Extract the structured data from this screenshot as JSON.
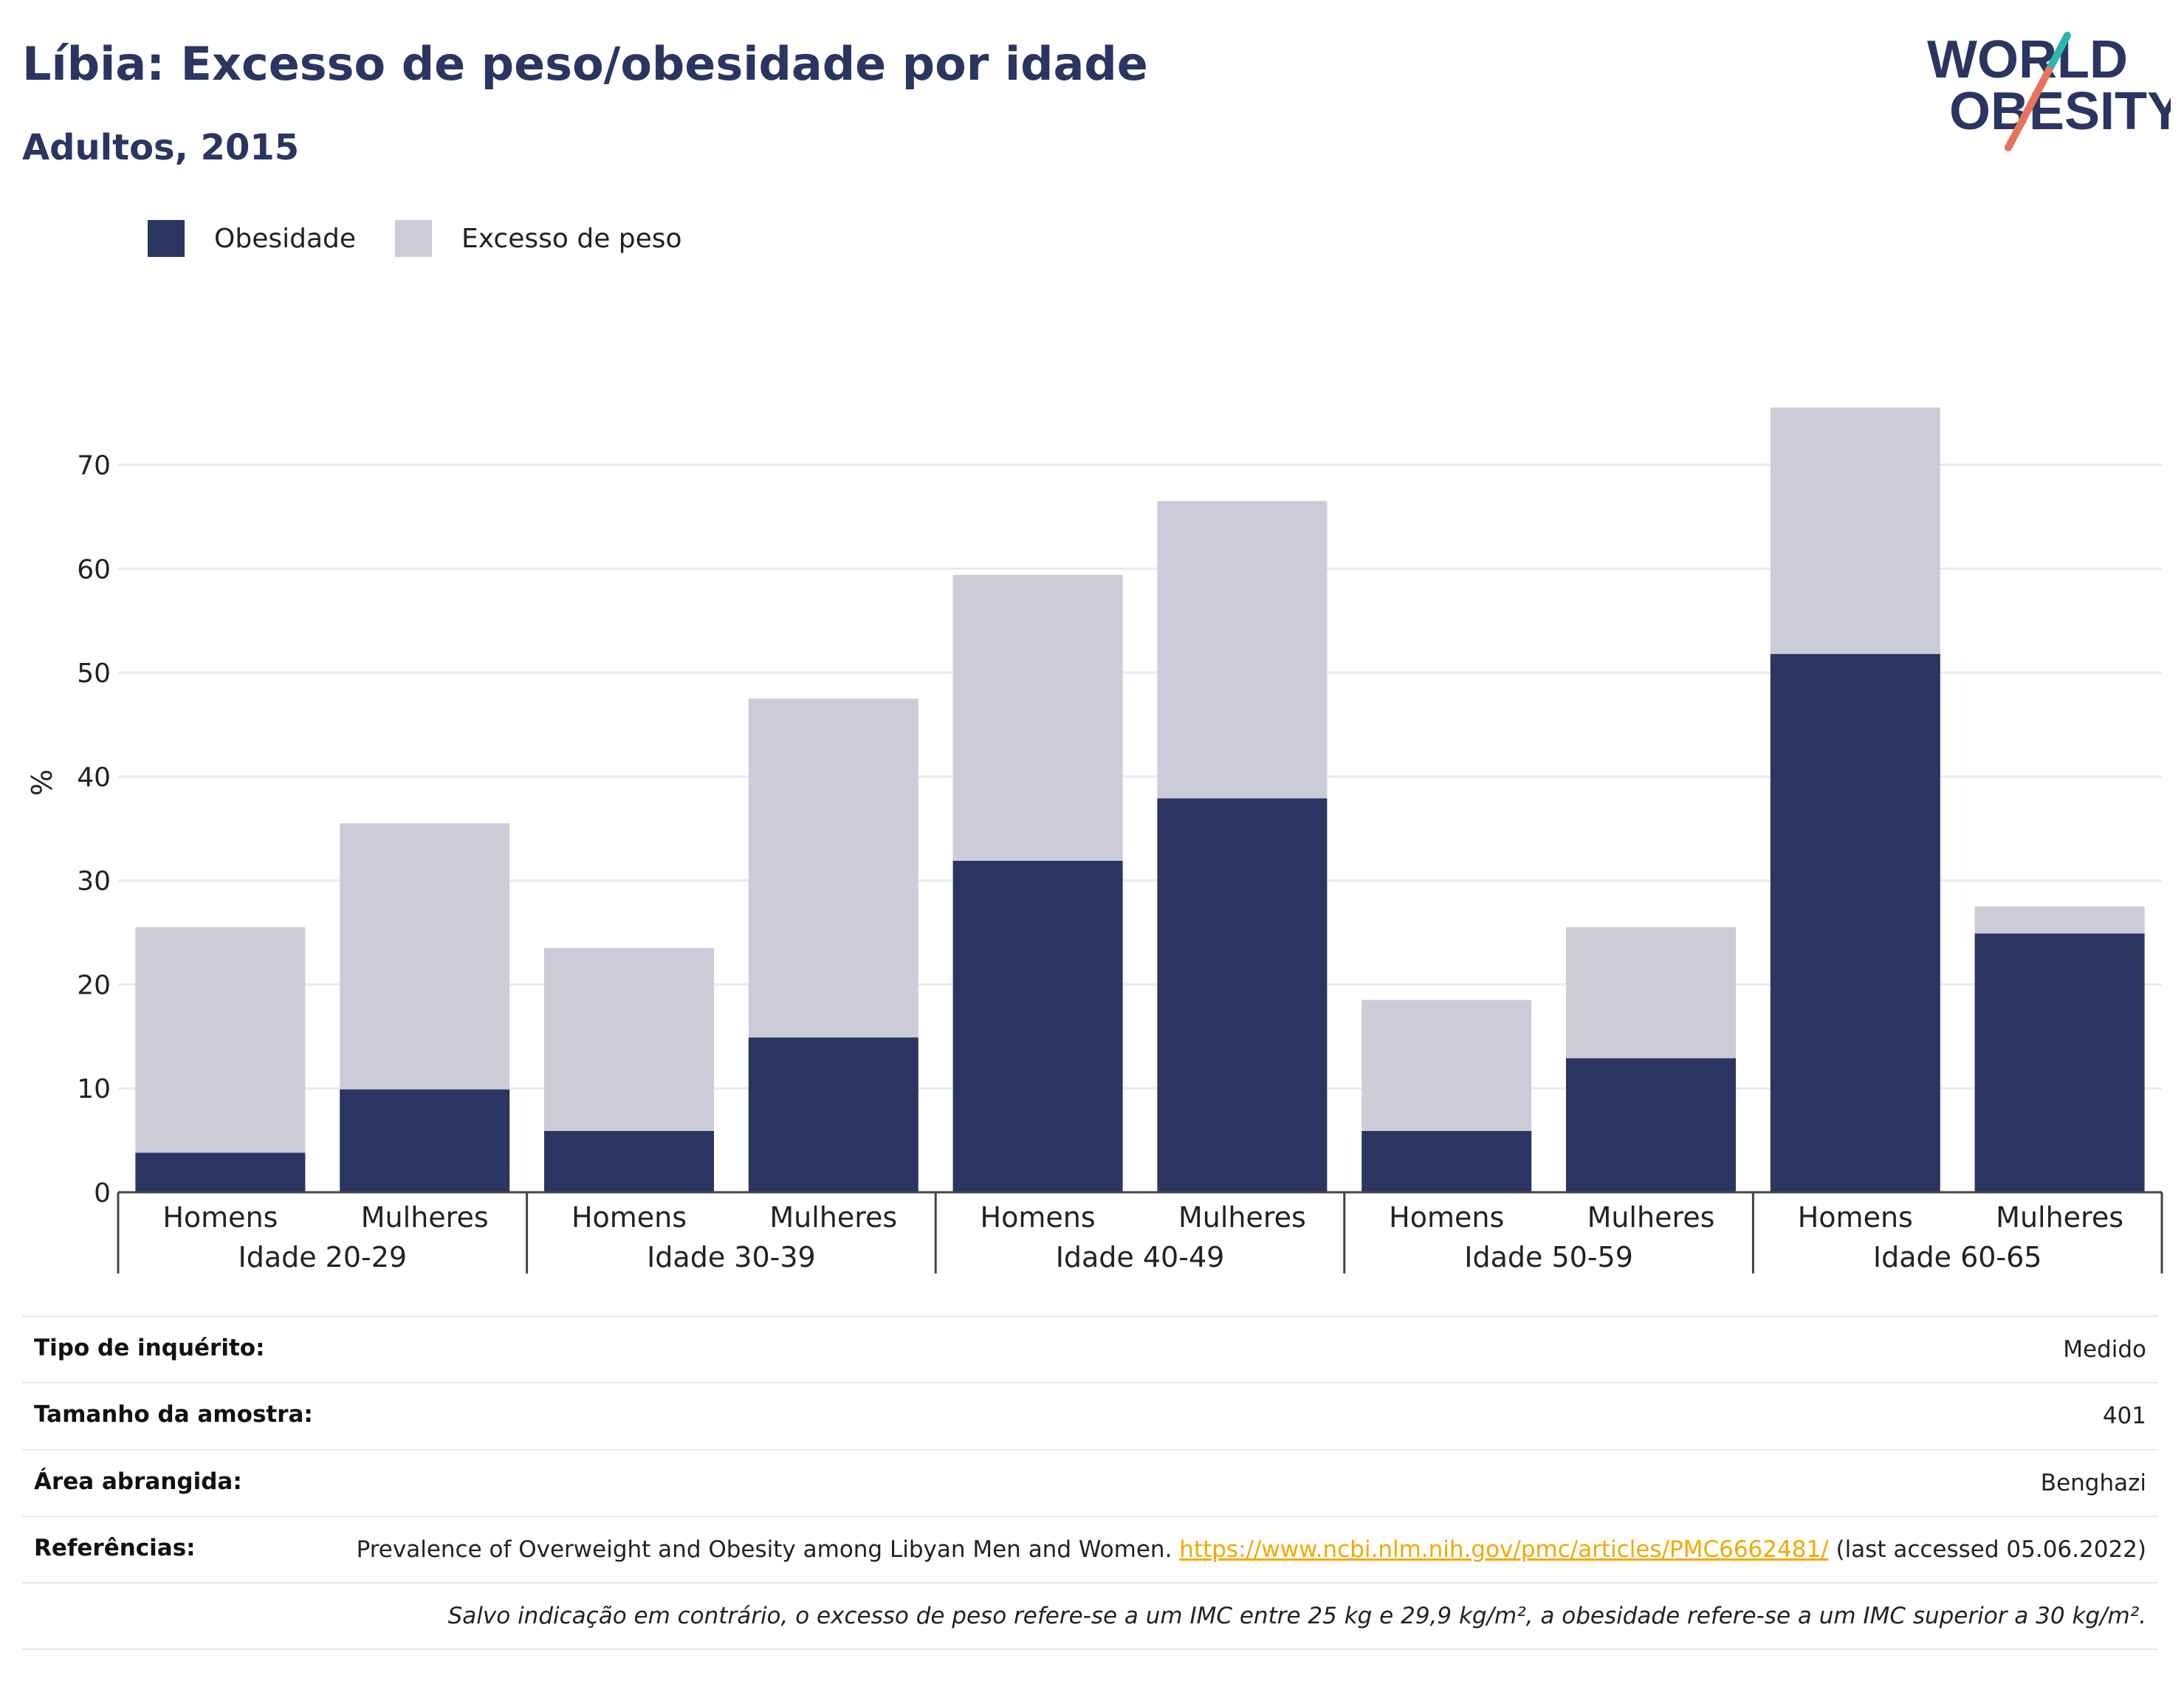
{
  "page": {
    "title": "Líbia: Excesso de peso/obesidade por idade",
    "subtitle": "Adultos, 2015"
  },
  "logo": {
    "line1": "WORLD",
    "line2": "OBESITY"
  },
  "chart_data": {
    "type": "bar",
    "stacked": true,
    "groups": [
      "Idade 20-29",
      "Idade 30-39",
      "Idade 40-49",
      "Idade 50-59",
      "Idade 60-65"
    ],
    "subcategories": [
      "Homens",
      "Mulheres"
    ],
    "series": [
      {
        "name": "Obesidade",
        "color": "#2b3561",
        "values": [
          3.8,
          9.9,
          5.9,
          14.9,
          31.9,
          37.9,
          5.9,
          12.9,
          51.8,
          24.9
        ]
      },
      {
        "name": "Excesso de peso",
        "color": "#cbccd8",
        "values": [
          21.7,
          25.6,
          17.6,
          32.6,
          27.5,
          28.6,
          12.6,
          12.6,
          23.7,
          2.6
        ]
      }
    ],
    "ylabel": "%",
    "xlabel": "",
    "ylim": [
      0,
      76
    ],
    "yticks": [
      0,
      10,
      20,
      30,
      40,
      50,
      60,
      70
    ],
    "grid": true,
    "legend_position": "top-left"
  },
  "info": {
    "rows": [
      {
        "key": "Tipo de inquérito:",
        "value": "Medido"
      },
      {
        "key": "Tamanho da amostra:",
        "value": "401"
      },
      {
        "key": "Área abrangida:",
        "value": "Benghazi"
      }
    ],
    "references": {
      "key": "Referências:",
      "text_before": "Prevalence of Overweight and Obesity among Libyan Men and Women. ",
      "link": "https://www.ncbi.nlm.nih.gov/pmc/articles/PMC6662481/",
      "text_after": " (last accessed 05.06.2022)"
    },
    "footnote": "Salvo indicação em contrário, o excesso de peso refere-se a um IMC entre 25 kg e 29,9 kg/m², a obesidade refere-se a um IMC superior a 30 kg/m²."
  }
}
